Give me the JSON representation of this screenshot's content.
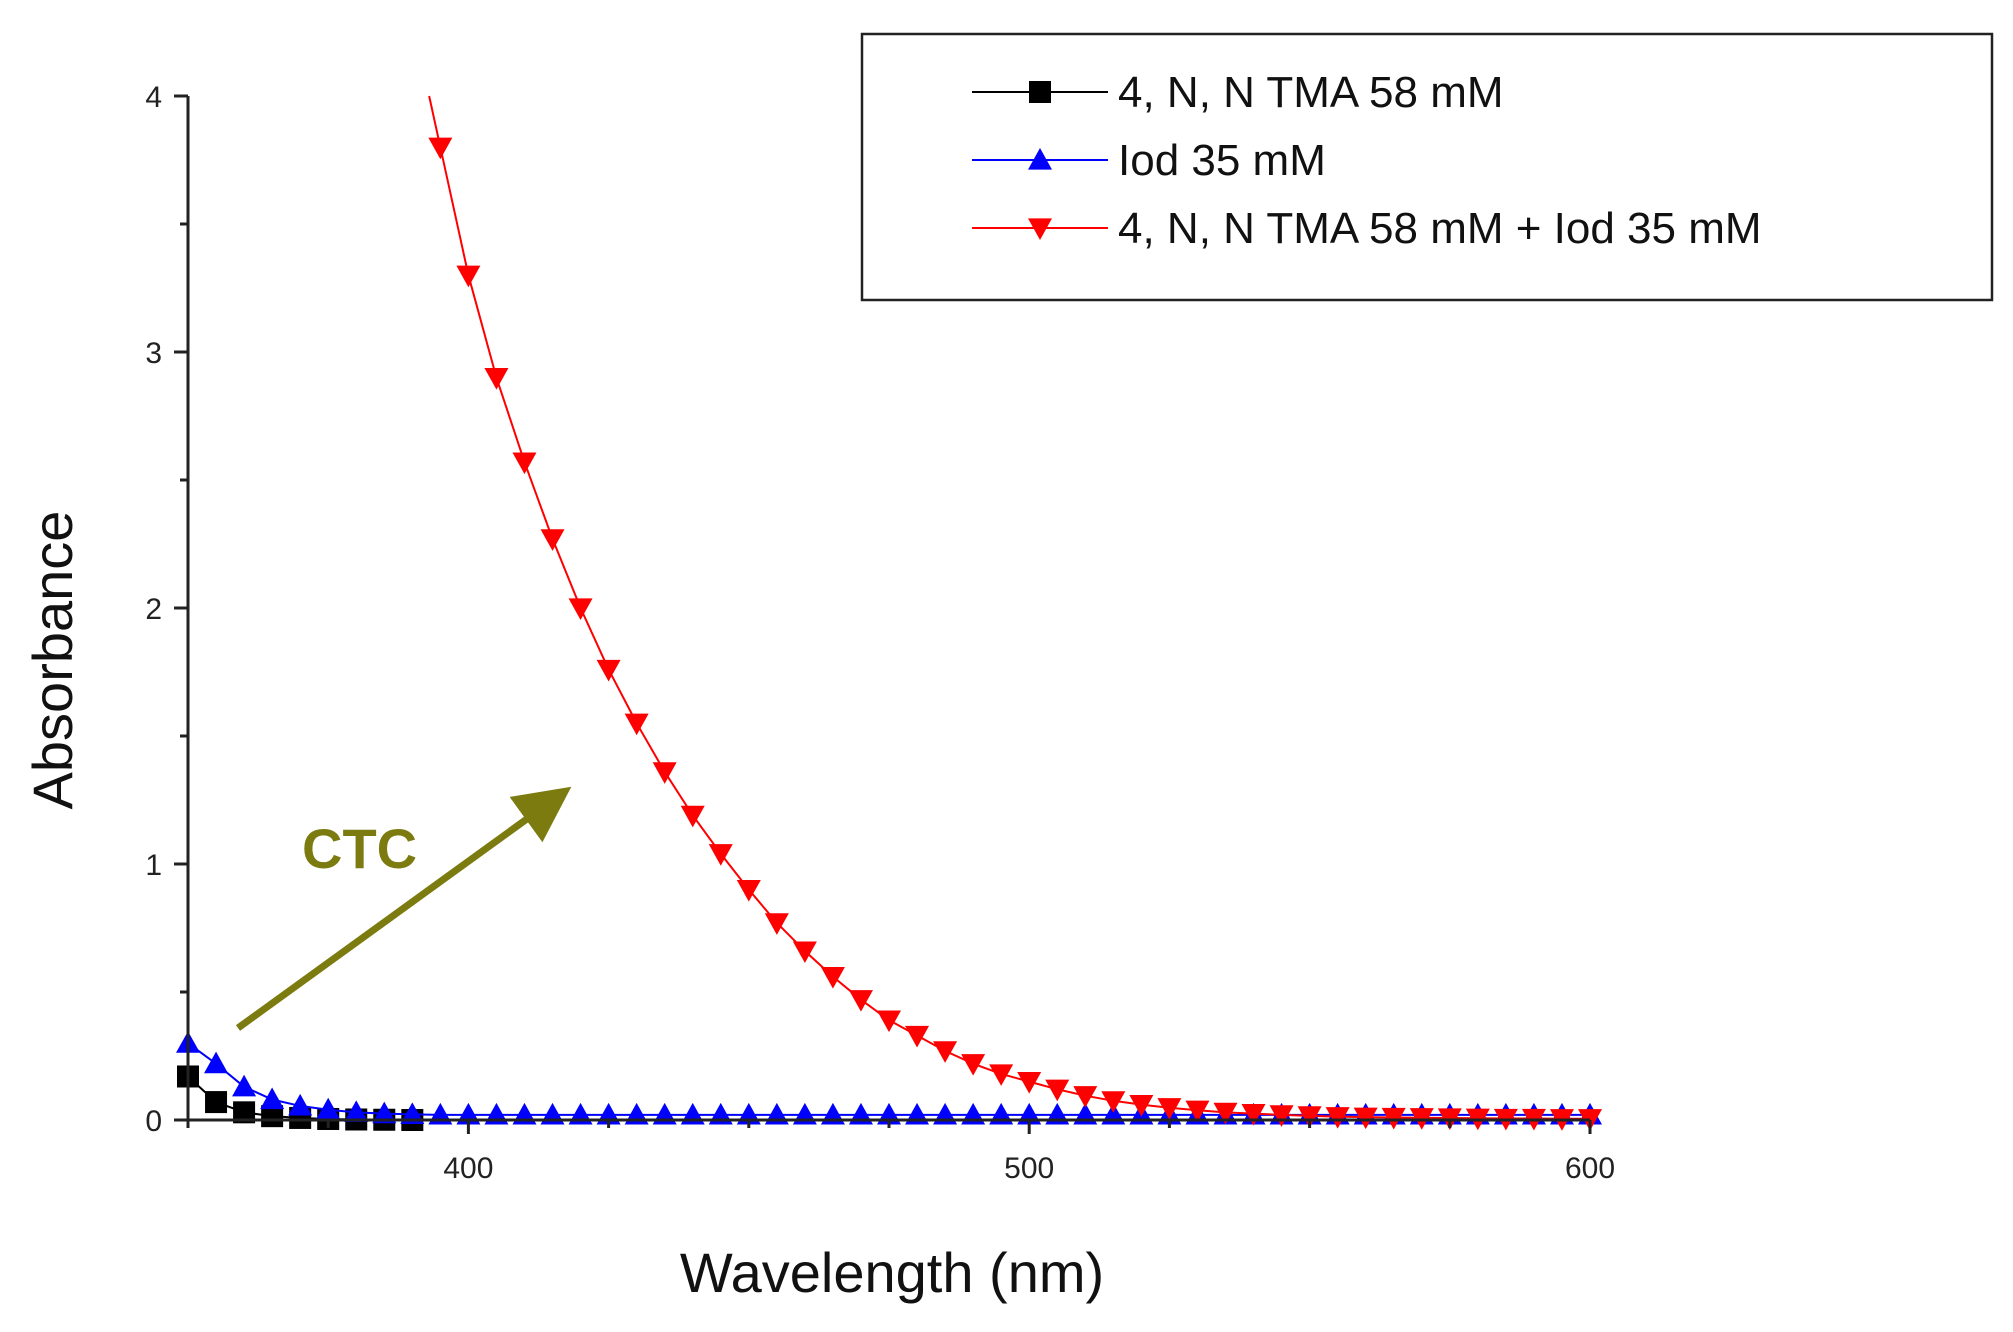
{
  "chart_data": {
    "type": "line",
    "title": "",
    "xlabel": "Wavelength (nm)",
    "ylabel": "Absorbance",
    "xlim": [
      350,
      600
    ],
    "ylim": [
      0,
      4
    ],
    "xticks": [
      400,
      500,
      600
    ],
    "yticks": [
      0,
      1,
      2,
      3,
      4
    ],
    "x_minor_step": 25,
    "y_minor_step": 0.5,
    "grid": false,
    "legend_position": "top-right",
    "series": [
      {
        "name": "4, N, N TMA 58 mM",
        "color": "#000000",
        "marker": "square",
        "x": [
          350,
          355,
          360,
          365,
          370,
          375,
          380,
          385,
          390
        ],
        "y": [
          0.17,
          0.07,
          0.03,
          0.015,
          0.008,
          0.004,
          0.002,
          0.001,
          0.0
        ]
      },
      {
        "name": "Iod 35 mM",
        "color": "#0000ff",
        "marker": "triangle-up",
        "x": [
          350,
          355,
          360,
          365,
          370,
          375,
          380,
          385,
          390,
          395,
          400,
          405,
          410,
          415,
          420,
          425,
          430,
          435,
          440,
          445,
          450,
          455,
          460,
          465,
          470,
          475,
          480,
          485,
          490,
          495,
          500,
          505,
          510,
          515,
          520,
          525,
          530,
          535,
          540,
          545,
          550,
          555,
          560,
          565,
          570,
          575,
          580,
          585,
          590,
          595,
          600
        ],
        "y": [
          0.3,
          0.22,
          0.13,
          0.08,
          0.055,
          0.04,
          0.03,
          0.025,
          0.022,
          0.02,
          0.02,
          0.02,
          0.02,
          0.02,
          0.02,
          0.02,
          0.02,
          0.02,
          0.02,
          0.02,
          0.02,
          0.02,
          0.02,
          0.02,
          0.02,
          0.02,
          0.02,
          0.02,
          0.02,
          0.02,
          0.02,
          0.02,
          0.02,
          0.02,
          0.02,
          0.02,
          0.02,
          0.02,
          0.02,
          0.02,
          0.02,
          0.02,
          0.02,
          0.02,
          0.02,
          0.02,
          0.02,
          0.02,
          0.02,
          0.02,
          0.02
        ]
      },
      {
        "name": "4, N, N TMA 58 mM + Iod 35 mM",
        "color": "#ff0000",
        "marker": "triangle-down",
        "x": [
          393,
          395,
          400,
          405,
          410,
          415,
          420,
          425,
          430,
          435,
          440,
          445,
          450,
          455,
          460,
          465,
          470,
          475,
          480,
          485,
          490,
          495,
          500,
          505,
          510,
          515,
          520,
          525,
          530,
          535,
          540,
          545,
          550,
          555,
          560,
          565,
          570,
          575,
          580,
          585,
          590,
          595,
          600
        ],
        "y": [
          4.0,
          3.8,
          3.3,
          2.9,
          2.57,
          2.27,
          2.0,
          1.76,
          1.55,
          1.36,
          1.19,
          1.04,
          0.9,
          0.77,
          0.66,
          0.56,
          0.47,
          0.39,
          0.33,
          0.27,
          0.22,
          0.18,
          0.15,
          0.12,
          0.095,
          0.075,
          0.06,
          0.048,
          0.038,
          0.03,
          0.025,
          0.02,
          0.016,
          0.013,
          0.011,
          0.01,
          0.009,
          0.008,
          0.007,
          0.006,
          0.006,
          0.005,
          0.005
        ]
      }
    ],
    "annotations": [
      {
        "text": "CTC",
        "color": "#7b7b10"
      }
    ]
  }
}
